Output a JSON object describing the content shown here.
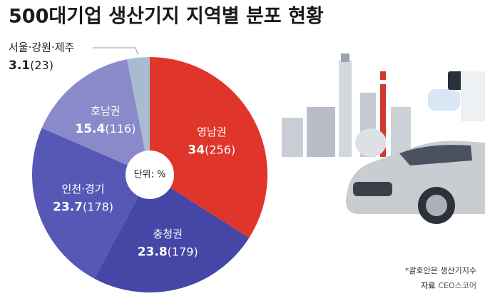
{
  "chart_data": {
    "type": "pie",
    "title": "500대기업 생산기지 지역별 분포 현황",
    "categories": [
      "영남권",
      "충청권",
      "인천·경기",
      "호남권",
      "서울·강원·제주"
    ],
    "values": [
      34,
      23.8,
      23.7,
      15.4,
      3.1
    ],
    "count_labels": [
      "(256)",
      "(179)",
      "(178)",
      "(116)",
      "(23)"
    ],
    "colors": [
      "#e0352b",
      "#4646a6",
      "#5757b6",
      "#8a8acb",
      "#a9bccf"
    ],
    "unit_label": "단위: %",
    "note": "*괄호안은 생산기지수",
    "source_label": "자료",
    "source": "CEO스코어"
  }
}
